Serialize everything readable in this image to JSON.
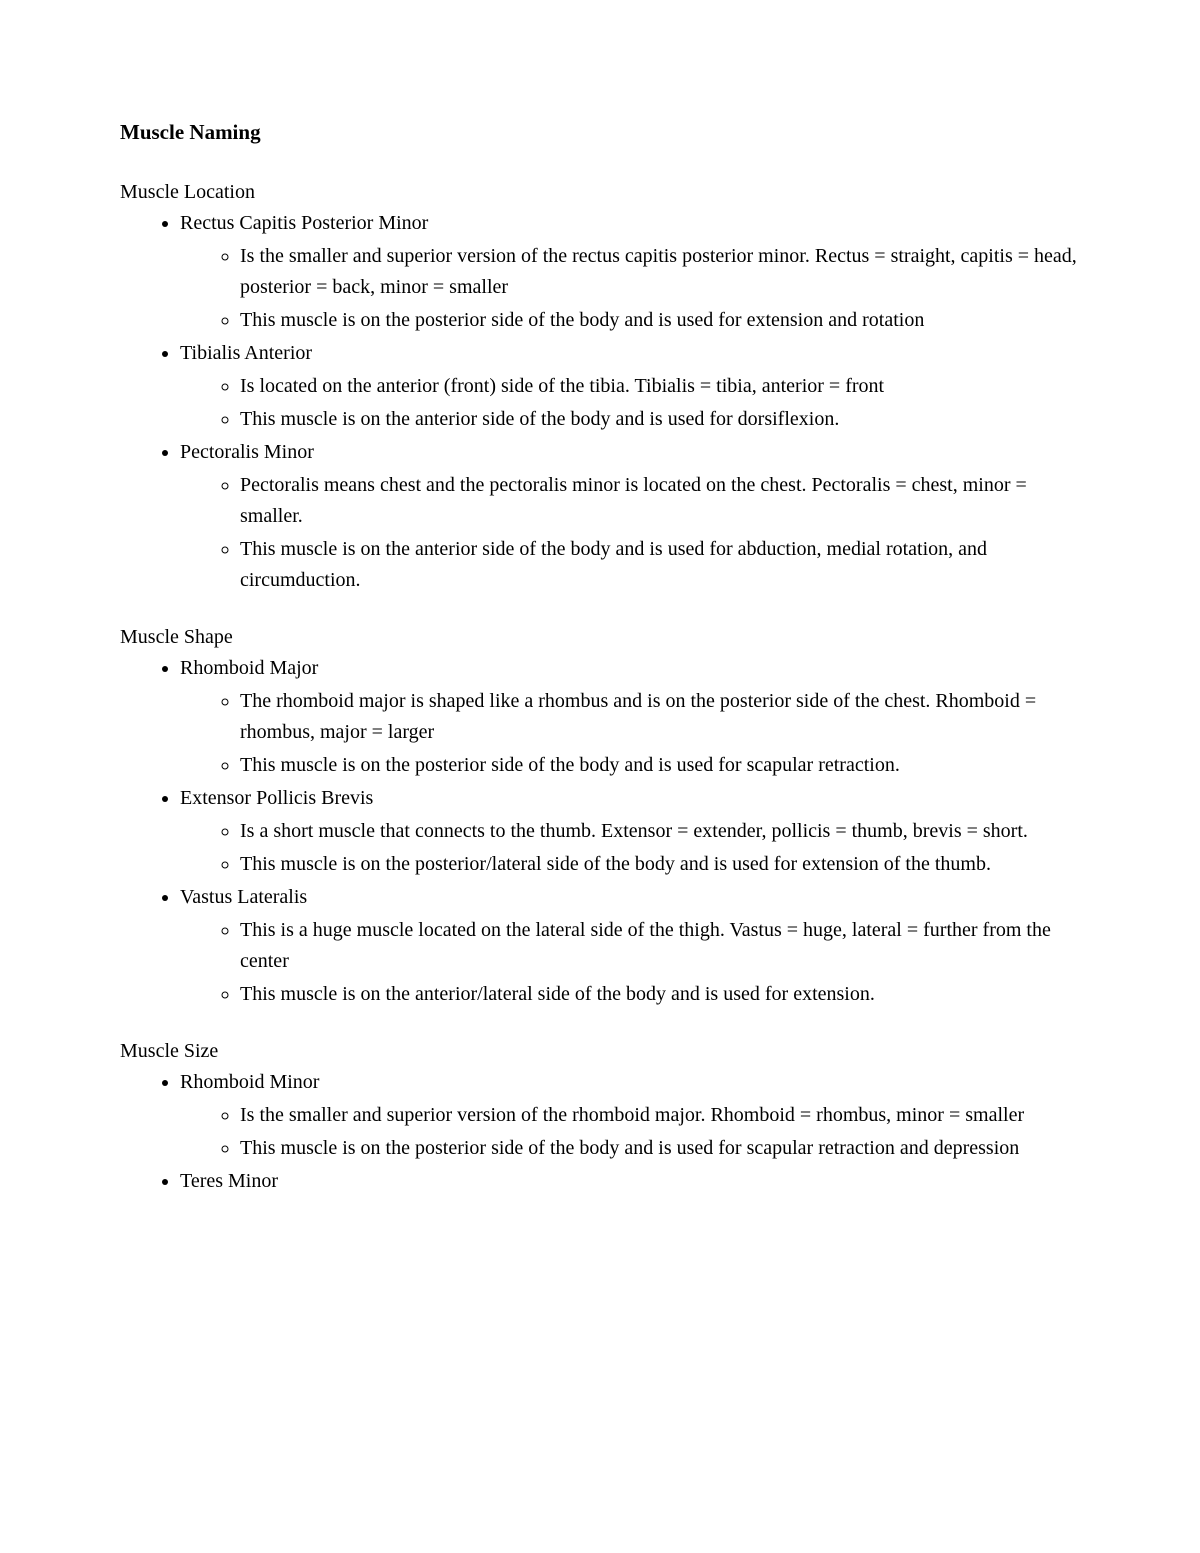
{
  "title": "Muscle Naming",
  "sections": [
    {
      "heading": "Muscle Location",
      "items": [
        {
          "name": "Rectus Capitis Posterior Minor",
          "subs": [
            "Is the smaller and superior version of the rectus capitis posterior minor. Rectus = straight, capitis = head, posterior = back, minor = smaller",
            "This muscle is on the posterior side of the body and is used for extension and rotation"
          ]
        },
        {
          "name": "Tibialis Anterior",
          "subs": [
            "Is located on the anterior (front) side of the tibia. Tibialis = tibia, anterior = front",
            "This muscle is on the anterior side of the body and is used for dorsiflexion."
          ]
        },
        {
          "name": "Pectoralis Minor",
          "subs": [
            "Pectoralis means chest and the pectoralis minor is located on the chest. Pectoralis = chest, minor = smaller.",
            "This muscle is on the anterior side of the body and is used for abduction, medial rotation, and circumduction."
          ]
        }
      ]
    },
    {
      "heading": "Muscle Shape",
      "items": [
        {
          "name": "Rhomboid Major",
          "subs": [
            "The rhomboid major is shaped like a rhombus and is on the posterior side of the chest. Rhomboid = rhombus, major = larger",
            "This muscle is on the posterior side of the body and is used for scapular retraction."
          ]
        },
        {
          "name": "Extensor Pollicis Brevis",
          "subs": [
            "Is a short muscle that connects to the thumb. Extensor = extender, pollicis = thumb, brevis = short.",
            "This muscle is on the posterior/lateral side of the body and is used for extension of the thumb."
          ]
        },
        {
          "name": "Vastus Lateralis",
          "subs": [
            "This is a huge muscle located on the lateral side of the thigh. Vastus = huge, lateral = further from the center",
            "This muscle is on the anterior/lateral side of the body and is used for extension."
          ]
        }
      ]
    },
    {
      "heading": "Muscle Size",
      "items": [
        {
          "name": "Rhomboid Minor",
          "subs": [
            "Is the smaller and superior version of the rhomboid major. Rhomboid = rhombus, minor = smaller",
            "This muscle is on the posterior side of the body and is used for scapular retraction and depression"
          ]
        },
        {
          "name": "Teres Minor",
          "subs": []
        }
      ]
    }
  ]
}
